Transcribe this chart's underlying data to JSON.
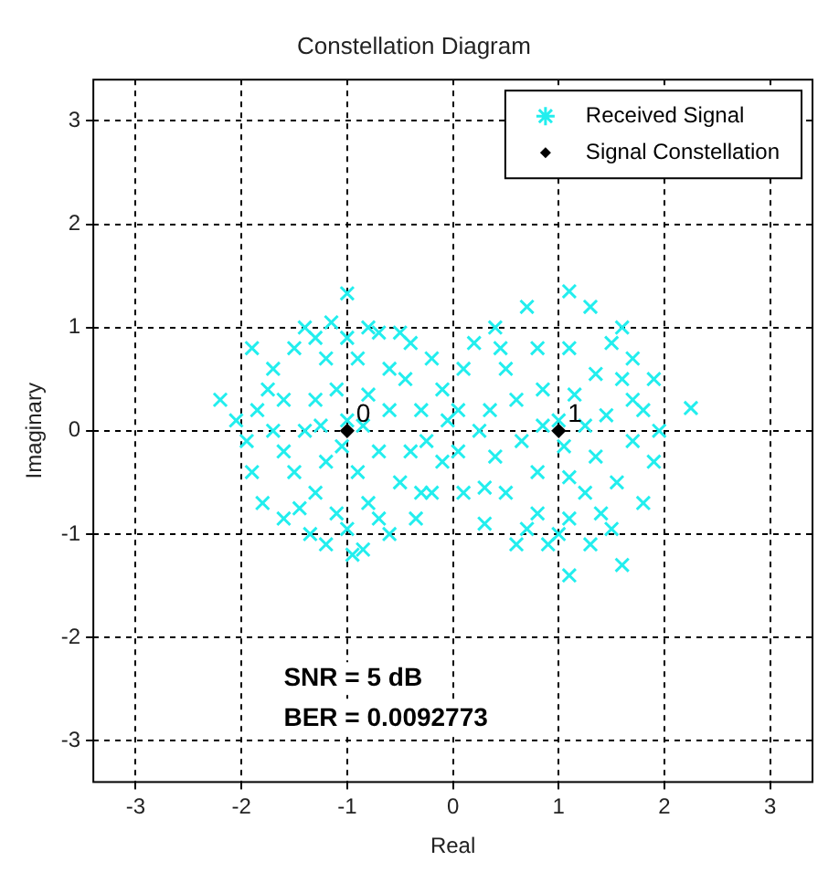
{
  "chart_data": {
    "type": "scatter",
    "title": "Constellation Diagram",
    "xlabel": "Real",
    "ylabel": "Imaginary",
    "xlim": [
      -3.4,
      3.4
    ],
    "ylim": [
      -3.4,
      3.4
    ],
    "xticks": [
      -3,
      -2,
      -1,
      0,
      1,
      2,
      3
    ],
    "yticks": [
      -3,
      -2,
      -1,
      0,
      1,
      2,
      3
    ],
    "grid": true,
    "legend": "top right",
    "line_style": "dashed",
    "series": [
      {
        "name": "Received Signal",
        "color": "#22eeee",
        "marker": "cross",
        "x": [
          -1,
          -1.4,
          -1.15,
          -0.8,
          -0.5,
          -1.9,
          -2.2,
          -2.05,
          -1.95,
          -1.9,
          -1.8,
          -1.6,
          -1.35,
          -1.2,
          -0.95,
          -0.85,
          -0.6,
          -0.35,
          -0.2,
          -0.1,
          -0.05,
          -0.1,
          -0.2,
          -0.4,
          -1.7,
          -1.5,
          -1.6,
          -1.7,
          -1.5,
          -1.3,
          -1.1,
          -0.8,
          -0.5,
          -0.4,
          -0.3,
          -0.6,
          -0.9,
          -1.2,
          -1.3,
          -1.4,
          -1.2,
          -0.9,
          -0.7,
          -0.6,
          -0.8,
          -1.1,
          -1,
          -1.05,
          -0.85,
          -1.25,
          -1.6,
          -1.75,
          -0.3,
          -0.7,
          -1,
          -1.45,
          -0.45,
          -0.25,
          -1.85,
          -1.3,
          -0.7,
          -1,
          1.1,
          0.7,
          1.3,
          1.6,
          0.4,
          2.25,
          1.9,
          1.95,
          1.9,
          1.8,
          1.6,
          1.1,
          1.3,
          0.9,
          0.6,
          0.3,
          0.1,
          0.05,
          0.05,
          0.1,
          0.2,
          1.7,
          1.5,
          1.7,
          1.7,
          1.55,
          1.4,
          1.1,
          0.8,
          0.5,
          0.4,
          0.35,
          0.5,
          0.8,
          1.1,
          1.35,
          1.45,
          1.35,
          1.1,
          0.8,
          0.65,
          0.6,
          0.85,
          1.15,
          1,
          1.05,
          0.85,
          1.25,
          1.6,
          0.3,
          0.7,
          1.25,
          0.45,
          1,
          1.5,
          0.25,
          1.8
        ],
        "values": [
          1.33,
          1,
          1.05,
          1,
          0.95,
          0.8,
          0.3,
          0.1,
          -0.1,
          -0.4,
          -0.7,
          -0.85,
          -1,
          -1.1,
          -1.2,
          -1.15,
          -1,
          -0.85,
          -0.6,
          -0.3,
          0.1,
          0.4,
          0.7,
          0.85,
          0.6,
          0.8,
          0.3,
          0,
          -0.4,
          -0.6,
          -0.8,
          -0.7,
          -0.5,
          -0.2,
          0.2,
          0.6,
          0.7,
          0.7,
          0.3,
          0,
          -0.3,
          -0.4,
          -0.2,
          0.2,
          0.35,
          0.4,
          0.1,
          -0.15,
          0.05,
          0.05,
          -0.2,
          0.4,
          -0.6,
          -0.85,
          -0.95,
          -0.75,
          0.5,
          -0.1,
          0.2,
          0.9,
          0.95,
          0.9,
          1.35,
          1.2,
          1.2,
          1,
          1,
          0.22,
          0.5,
          0,
          -0.3,
          -0.7,
          -1.3,
          -1.4,
          -1.1,
          -1.1,
          -1.1,
          -0.9,
          -0.6,
          -0.2,
          0.2,
          0.6,
          0.85,
          0.7,
          0.85,
          0.3,
          -0.1,
          -0.5,
          -0.8,
          -0.85,
          -0.8,
          -0.6,
          -0.25,
          0.2,
          0.6,
          0.8,
          0.8,
          0.55,
          0.15,
          -0.25,
          -0.45,
          -0.4,
          -0.1,
          0.3,
          0.4,
          0.35,
          0.1,
          -0.15,
          0.05,
          0.05,
          0.5,
          -0.55,
          -0.95,
          -0.6,
          0.8,
          -1,
          -0.95,
          0,
          0.2
        ]
      },
      {
        "name": "Signal Constellation",
        "color": "#000000",
        "marker": "diamond",
        "x": [
          -1,
          1
        ],
        "values": [
          0,
          0
        ]
      }
    ],
    "annotations": [
      {
        "text": "0",
        "x": -1,
        "y": 0
      },
      {
        "text": "1",
        "x": 1,
        "y": 0
      },
      "SNR = 5 dB",
      "BER = 0.0092773"
    ]
  }
}
